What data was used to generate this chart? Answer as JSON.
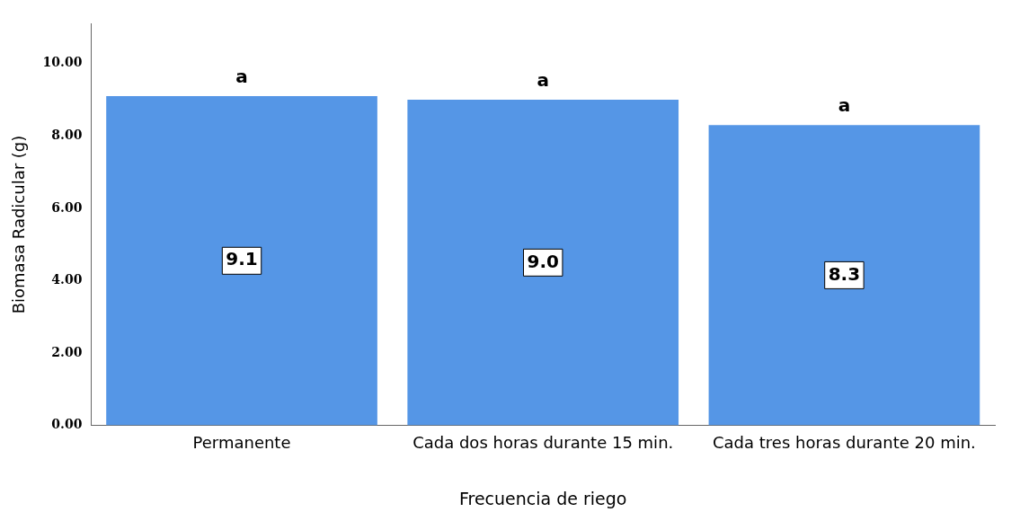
{
  "chart_data": {
    "type": "bar",
    "xlabel": "Frecuencia de riego",
    "ylabel": "Biomasa Radicular (g)",
    "categories": [
      "Permanente",
      "Cada dos horas durante 15 min.",
      "Cada tres horas durante 20 min."
    ],
    "values": [
      9.1,
      9.0,
      8.3
    ],
    "color": "#5596e6",
    "value_labels": [
      "9.1",
      "9.0",
      "8.3"
    ],
    "ylim": [
      0,
      11.1
    ],
    "yticks": [
      {
        "value": 0,
        "label": "0.00"
      },
      {
        "value": 2,
        "label": "2.00"
      },
      {
        "value": 4,
        "label": "4.00"
      },
      {
        "value": 6,
        "label": "6.00"
      },
      {
        "value": 8,
        "label": "8.00"
      },
      {
        "value": 10,
        "label": "10.00"
      }
    ],
    "grid": false,
    "legend": false,
    "annotations": [
      {
        "text": "a",
        "x": "Permanente",
        "y": 9.1
      },
      {
        "text": "a",
        "x": "Cada dos horas durante 15 min.",
        "y": 9.0
      },
      {
        "text": "a",
        "x": "Cada tres horas durante 20 min.",
        "y": 8.3
      }
    ]
  }
}
